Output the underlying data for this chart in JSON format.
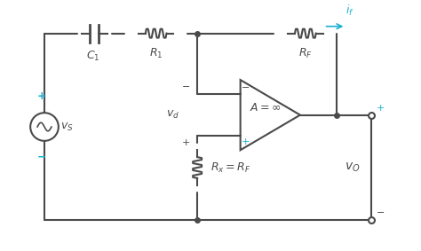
{
  "bg_color": "#ffffff",
  "line_color": "#4a4a4a",
  "cyan_color": "#1ab0d0",
  "fig_width": 4.74,
  "fig_height": 2.83,
  "title": ""
}
